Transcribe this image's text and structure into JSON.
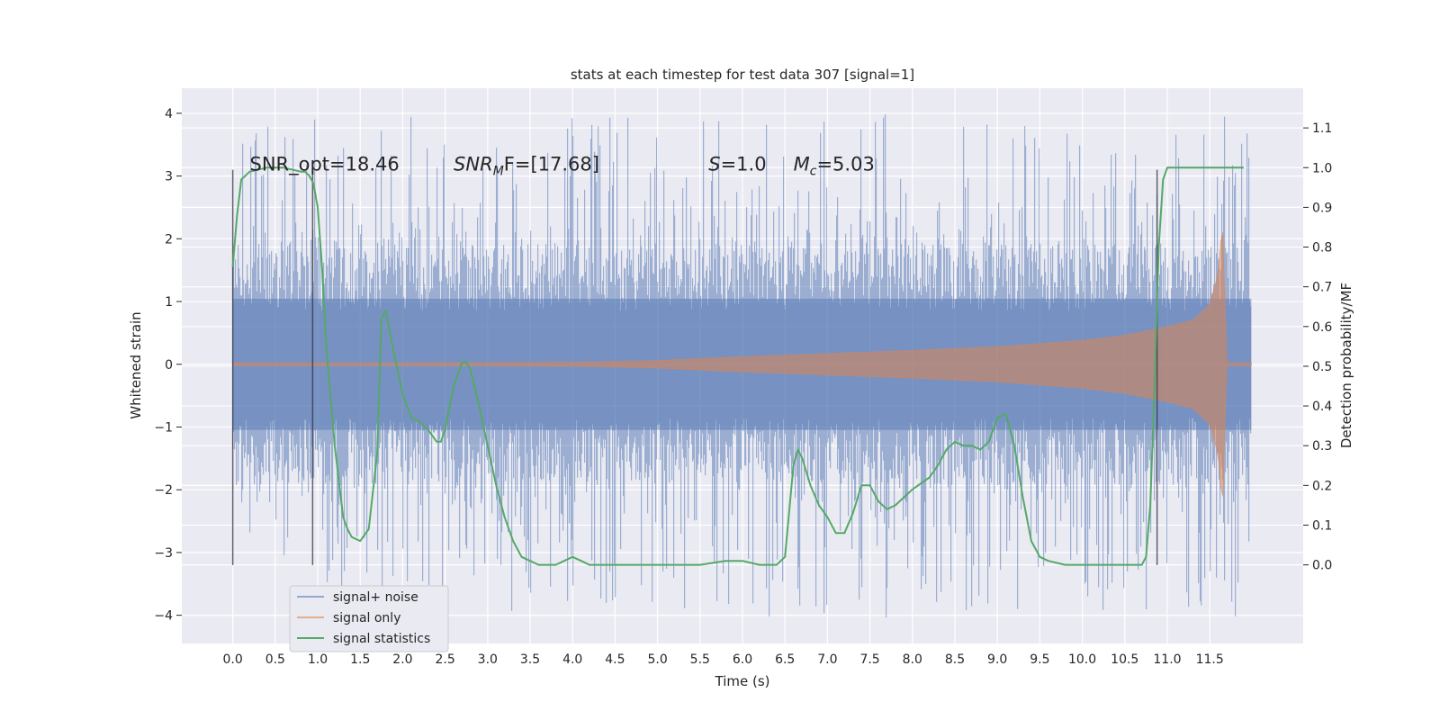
{
  "chart_data": {
    "type": "line",
    "title": "stats at each timestep for test data 307 [signal=1]",
    "xlabel": "Time (s)",
    "ylabel": "Whitened strain",
    "ylabel_right": "Detection probability/MF",
    "xlim": [
      -0.6,
      12.6
    ],
    "ylim": [
      -4.45,
      4.4
    ],
    "ylim_right": [
      -0.198,
      1.2
    ],
    "grid": true,
    "legend_position": "lower-left",
    "x_ticks": [
      0.0,
      0.5,
      1.0,
      1.5,
      2.0,
      2.5,
      3.0,
      3.5,
      4.0,
      4.5,
      5.0,
      5.5,
      6.0,
      6.5,
      7.0,
      7.5,
      8.0,
      8.5,
      9.0,
      9.5,
      10.0,
      10.5,
      11.0,
      11.5
    ],
    "x_tick_labels": [
      "0.0",
      "0.5",
      "1.0",
      "1.5",
      "2.0",
      "2.5",
      "3.0",
      "3.5",
      "4.0",
      "4.5",
      "5.0",
      "5.5",
      "6.0",
      "6.5",
      "7.0",
      "7.5",
      "8.0",
      "8.5",
      "9.0",
      "9.5",
      "10.0",
      "10.5",
      "11.0",
      "11.5"
    ],
    "y_ticks": [
      -4,
      -3,
      -2,
      -1,
      0,
      1,
      2,
      3,
      4
    ],
    "y_tick_labels": [
      "−4",
      "−3",
      "−2",
      "−1",
      "0",
      "1",
      "2",
      "3",
      "4"
    ],
    "y_ticks_right": [
      0.0,
      0.1,
      0.2,
      0.3,
      0.4,
      0.5,
      0.6,
      0.7,
      0.8,
      0.9,
      1.0,
      1.1
    ],
    "y_tick_labels_right": [
      "0.0",
      "0.1",
      "0.2",
      "0.3",
      "0.4",
      "0.5",
      "0.6",
      "0.7",
      "0.8",
      "0.9",
      "1.0",
      "1.1"
    ],
    "annotations": [
      {
        "text": "SNR_opt=18.46",
        "x": 0.2,
        "y": 3.2
      },
      {
        "text": "SNR",
        "sub": "M",
        "tail": "F=[17.68]",
        "x": 2.6,
        "y": 3.2
      },
      {
        "text": "S",
        "tail": "=1.0",
        "x": 5.6,
        "y": 3.2
      },
      {
        "text": "M",
        "sub": "c",
        "tail": "=5.03",
        "x": 6.6,
        "y": 3.2
      }
    ],
    "vertical_lines": [
      {
        "x": 0.0,
        "ymin": -3.2,
        "ymax": 3.1
      },
      {
        "x": 0.94,
        "ymin": -3.2,
        "ymax": 3.1
      },
      {
        "x": 10.88,
        "ymin": -3.2,
        "ymax": 3.1
      }
    ],
    "series": [
      {
        "name": "signal+ noise",
        "color": "#4c72b0",
        "kind": "noise",
        "x_range": [
          0.0,
          11.99
        ],
        "typical_range": [
          -1.9,
          1.9
        ],
        "extremes": [
          -4.05,
          4.0
        ]
      },
      {
        "name": "signal only",
        "color": "#dd8452",
        "kind": "chirp",
        "x": [
          0.0,
          2.0,
          4.0,
          5.0,
          6.0,
          7.0,
          8.0,
          9.0,
          10.0,
          10.5,
          11.0,
          11.3,
          11.5,
          11.6,
          11.65,
          11.7,
          11.99
        ],
        "envelope": [
          0.02,
          0.02,
          0.03,
          0.06,
          0.12,
          0.17,
          0.22,
          0.28,
          0.38,
          0.46,
          0.6,
          0.7,
          0.95,
          1.45,
          2.3,
          0.02,
          0.02
        ]
      },
      {
        "name": "signal statistics",
        "color": "#55a868",
        "kind": "line",
        "axis": "right",
        "x": [
          0.0,
          0.05,
          0.1,
          0.2,
          0.4,
          0.6,
          0.8,
          0.85,
          0.9,
          0.95,
          1.0,
          1.05,
          1.1,
          1.2,
          1.3,
          1.35,
          1.4,
          1.5,
          1.6,
          1.7,
          1.75,
          1.8,
          1.9,
          2.0,
          2.1,
          2.2,
          2.3,
          2.4,
          2.45,
          2.5,
          2.6,
          2.7,
          2.75,
          2.8,
          2.9,
          3.0,
          3.1,
          3.2,
          3.3,
          3.4,
          3.5,
          3.6,
          3.8,
          3.9,
          4.0,
          4.1,
          4.2,
          4.5,
          5.0,
          5.5,
          5.8,
          6.0,
          6.2,
          6.4,
          6.5,
          6.6,
          6.65,
          6.7,
          6.8,
          6.9,
          7.0,
          7.1,
          7.2,
          7.3,
          7.4,
          7.5,
          7.6,
          7.7,
          7.8,
          7.9,
          8.0,
          8.2,
          8.3,
          8.4,
          8.5,
          8.6,
          8.7,
          8.8,
          8.9,
          9.0,
          9.1,
          9.2,
          9.3,
          9.4,
          9.5,
          9.6,
          9.8,
          10.0,
          10.2,
          10.5,
          10.7,
          10.75,
          10.8,
          10.85,
          10.9,
          10.95,
          11.0,
          11.1,
          11.3,
          11.6,
          11.9
        ],
        "values": [
          0.75,
          0.88,
          0.97,
          0.99,
          1.0,
          1.0,
          0.99,
          0.99,
          0.98,
          0.96,
          0.9,
          0.75,
          0.55,
          0.3,
          0.12,
          0.09,
          0.07,
          0.06,
          0.09,
          0.28,
          0.62,
          0.64,
          0.53,
          0.43,
          0.37,
          0.36,
          0.34,
          0.31,
          0.31,
          0.34,
          0.45,
          0.51,
          0.51,
          0.49,
          0.4,
          0.3,
          0.2,
          0.12,
          0.06,
          0.02,
          0.01,
          0.0,
          0.0,
          0.01,
          0.02,
          0.01,
          0.0,
          0.0,
          0.0,
          0.0,
          0.01,
          0.01,
          0.0,
          0.0,
          0.02,
          0.25,
          0.29,
          0.27,
          0.2,
          0.15,
          0.12,
          0.08,
          0.08,
          0.13,
          0.2,
          0.2,
          0.16,
          0.14,
          0.15,
          0.17,
          0.19,
          0.22,
          0.25,
          0.29,
          0.31,
          0.3,
          0.3,
          0.29,
          0.31,
          0.37,
          0.38,
          0.3,
          0.17,
          0.06,
          0.02,
          0.01,
          0.0,
          0.0,
          0.0,
          0.0,
          0.0,
          0.02,
          0.15,
          0.45,
          0.8,
          0.97,
          1.0,
          1.0,
          1.0,
          1.0,
          1.0
        ]
      }
    ],
    "legend": [
      {
        "label": "signal+ noise",
        "color": "#4c72b0"
      },
      {
        "label": "signal only",
        "color": "#dd8452"
      },
      {
        "label": "signal statistics",
        "color": "#55a868"
      }
    ],
    "colors": {
      "background": "#eaeaf2",
      "grid": "#ffffff",
      "text": "#262626",
      "vline": "#333344"
    }
  }
}
